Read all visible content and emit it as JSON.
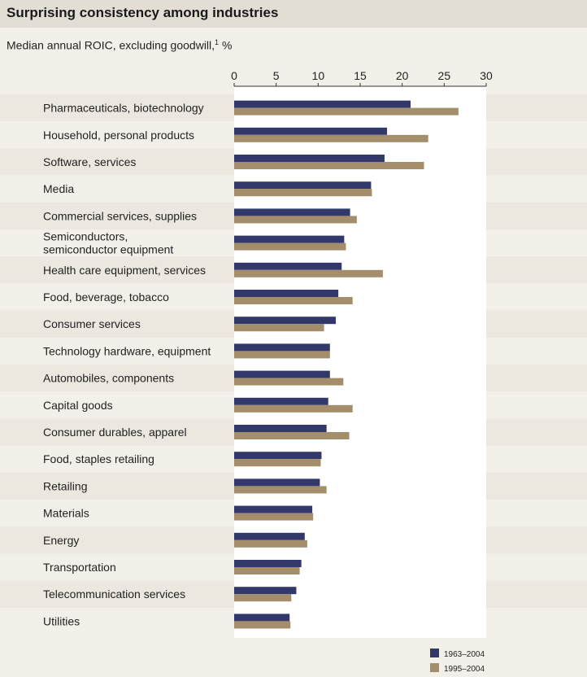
{
  "header": {
    "title": "Surprising consistency among industries",
    "subtitle": "Median annual ROIC, excluding goodwill,",
    "subtitle_footnote": "1",
    "subtitle_unit": "%"
  },
  "colors": {
    "series_1963": "#33386b",
    "series_1995": "#a38d6b",
    "band": "#ece8e0",
    "plot_bg": "#ffffff",
    "title_bg": "#e3ded3"
  },
  "chart_data": {
    "type": "bar",
    "orientation": "horizontal",
    "title": "Surprising consistency among industries",
    "xlabel": "Median annual ROIC, excluding goodwill, %",
    "xlim": [
      0,
      30
    ],
    "xticks": [
      0,
      5,
      10,
      15,
      20,
      25,
      30
    ],
    "legend_position": "bottom-right",
    "categories": [
      "Pharmaceuticals, biotechnology",
      "Household, personal products",
      "Software, services",
      "Media",
      "Commercial services, supplies",
      "Semiconductors,\nsemiconductor equipment",
      "Health care equipment, services",
      "Food, beverage, tobacco",
      "Consumer services",
      "Technology hardware, equipment",
      "Automobiles, components",
      "Capital goods",
      "Consumer durables, apparel",
      "Food, staples retailing",
      "Retailing",
      "Materials",
      "Energy",
      "Transportation",
      "Telecommunication services",
      "Utilities"
    ],
    "series": [
      {
        "name": "1963–2004",
        "values": [
          21.0,
          18.2,
          17.9,
          16.3,
          13.8,
          13.1,
          12.8,
          12.4,
          12.1,
          11.4,
          11.4,
          11.2,
          11.0,
          10.4,
          10.2,
          9.3,
          8.4,
          8.0,
          7.4,
          6.6
        ]
      },
      {
        "name": "1995–2004",
        "values": [
          26.7,
          23.1,
          22.6,
          16.4,
          14.6,
          13.3,
          17.7,
          14.1,
          10.7,
          11.4,
          13.0,
          14.1,
          13.7,
          10.3,
          11.0,
          9.4,
          8.7,
          7.8,
          6.8,
          6.7
        ]
      }
    ]
  }
}
